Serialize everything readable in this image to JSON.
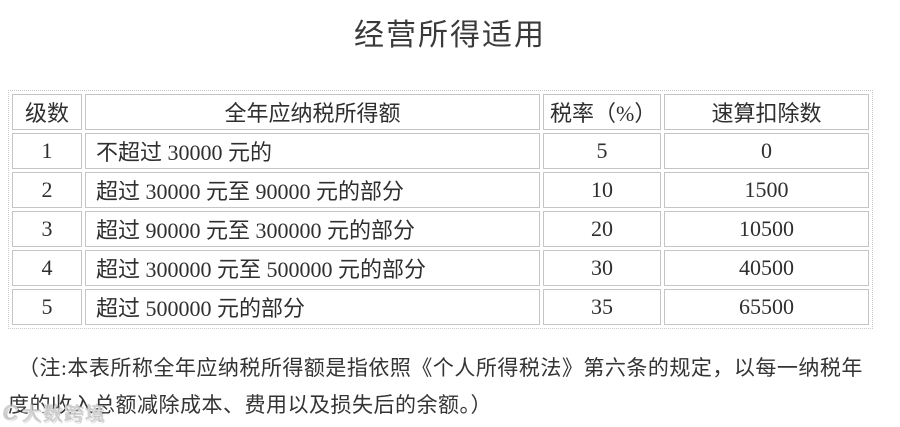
{
  "title": "经营所得适用",
  "table": {
    "headers": [
      "级数",
      "全年应纳税所得额",
      "税率（%）",
      "速算扣除数"
    ],
    "rows": [
      {
        "level": "1",
        "income": "不超过 30000 元的",
        "rate": "5",
        "deduction": "0"
      },
      {
        "level": "2",
        "income": "超过 30000 元至 90000 元的部分",
        "rate": "10",
        "deduction": "1500"
      },
      {
        "level": "3",
        "income": "超过 90000 元至 300000 元的部分",
        "rate": "20",
        "deduction": "10500"
      },
      {
        "level": "4",
        "income": "超过 300000 元至 500000 元的部分",
        "rate": "30",
        "deduction": "40500"
      },
      {
        "level": "5",
        "income": "超过 500000 元的部分",
        "rate": "35",
        "deduction": "65500"
      }
    ]
  },
  "note": {
    "line1": "（注:本表所称全年应纳税所得额是指依照《个人所得税法》第六条的规定，以每一纳税年",
    "line2": "度的收入总额减除成本、费用以及损失后的余额。）"
  },
  "watermark": {
    "logo_glyph": "C",
    "text": "大数跨境"
  },
  "colors": {
    "text": "#2f2f2f",
    "cell_border": "#c5c5c5",
    "outer_border_dotted": "#c9c9c9",
    "background": "#ffffff"
  }
}
